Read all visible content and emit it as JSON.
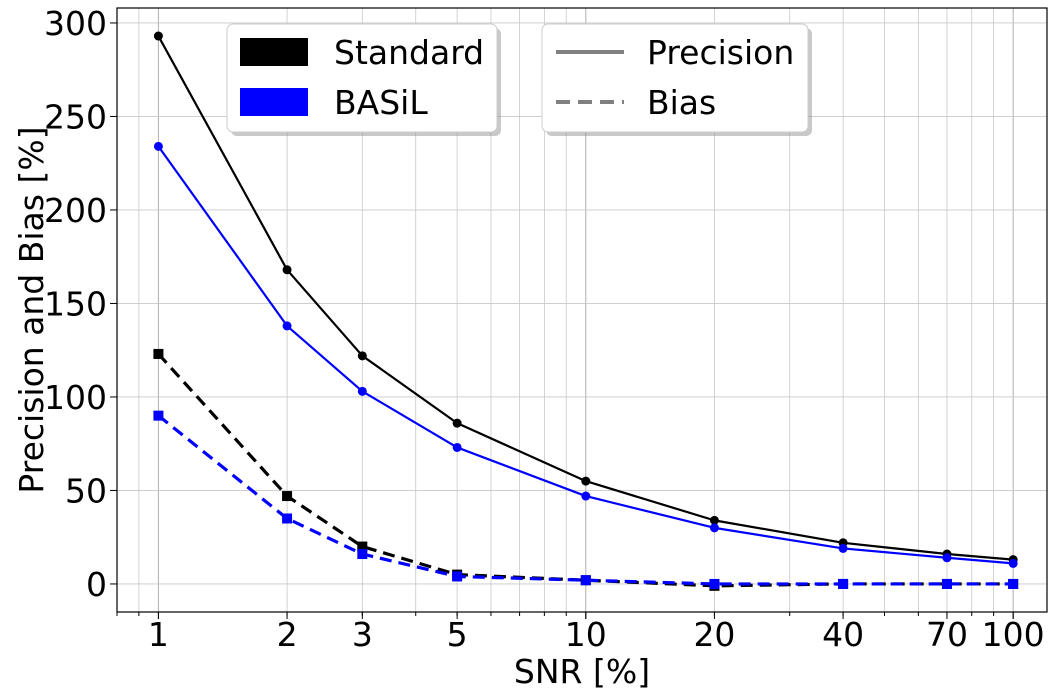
{
  "chart_data": {
    "type": "line",
    "xscale": "log",
    "xlabel": "SNR [%]",
    "ylabel": "Precision and Bias [%]",
    "xlim": [
      0.8,
      120
    ],
    "ylim": [
      -15,
      308
    ],
    "x": [
      1,
      2,
      3,
      5,
      10,
      20,
      40,
      70,
      100
    ],
    "xtick_labels": [
      "1",
      "2",
      "3",
      "5",
      "10",
      "20",
      "40",
      "70",
      "100"
    ],
    "yticks": [
      0,
      50,
      100,
      150,
      200,
      250,
      300
    ],
    "ytick_labels": [
      "0",
      "50",
      "100",
      "150",
      "200",
      "250",
      "300"
    ],
    "grid": true,
    "series": [
      {
        "name": "Standard Precision",
        "method": "Standard",
        "metric": "Precision",
        "color": "#000000",
        "linestyle": "solid",
        "marker": "circle",
        "values": [
          293,
          168,
          122,
          86,
          55,
          34,
          22,
          16,
          13
        ]
      },
      {
        "name": "BASiL Precision",
        "method": "BASiL",
        "metric": "Precision",
        "color": "#0000ff",
        "linestyle": "solid",
        "marker": "circle",
        "values": [
          234,
          138,
          103,
          73,
          47,
          30,
          19,
          14,
          11
        ]
      },
      {
        "name": "Standard Bias",
        "method": "Standard",
        "metric": "Bias",
        "color": "#000000",
        "linestyle": "dashed",
        "marker": "square",
        "values": [
          123,
          47,
          20,
          5,
          2,
          -1,
          0,
          0,
          0
        ]
      },
      {
        "name": "BASiL Bias",
        "method": "BASiL",
        "metric": "Bias",
        "color": "#0000ff",
        "linestyle": "dashed",
        "marker": "square",
        "values": [
          90,
          35,
          16,
          4,
          2,
          0,
          0,
          0,
          0
        ]
      }
    ],
    "legend_methods": {
      "placement": "upper-left",
      "items": [
        {
          "label": "Standard",
          "color": "#000000"
        },
        {
          "label": "BASiL",
          "color": "#0000ff"
        }
      ]
    },
    "legend_metrics": {
      "placement": "upper-center",
      "items": [
        {
          "label": "Precision",
          "color": "#808080",
          "linestyle": "solid"
        },
        {
          "label": "Bias",
          "color": "#808080",
          "linestyle": "dashed"
        }
      ]
    }
  }
}
